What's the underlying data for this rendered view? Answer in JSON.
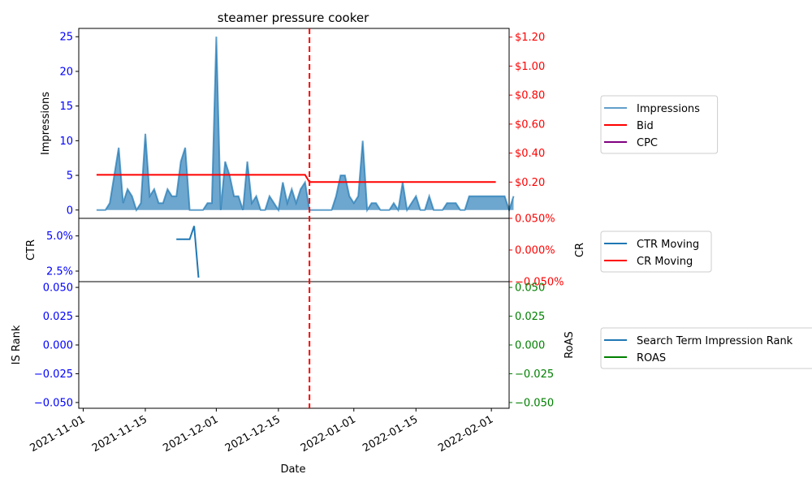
{
  "chart_data": [
    {
      "panel": "impressions",
      "type": "area",
      "title": "steamer pressure cooker",
      "xlabel": "Date",
      "ylabel": "Impressions",
      "ylabel_right": "",
      "x_start": "2021-11-04",
      "x_end": "2022-02-02",
      "xlim": [
        "2021-10-31",
        "2022-02-05"
      ],
      "ylim": [
        -1.2,
        26.2
      ],
      "yticks": [
        0,
        5,
        10,
        15,
        20,
        25
      ],
      "ylim_right": [
        -0.05,
        1.26
      ],
      "yticks_right": [
        0.2,
        0.4,
        0.6,
        0.8,
        1.0,
        1.2
      ],
      "yticks_right_labels": [
        "$0.20",
        "$0.40",
        "$0.60",
        "$0.80",
        "$1.00",
        "$1.20"
      ],
      "series": [
        {
          "name": "Impressions",
          "axis": "left",
          "values": [
            0,
            0,
            0,
            1,
            5,
            9,
            1,
            3,
            2,
            0,
            1,
            11,
            2,
            3,
            1,
            1,
            3,
            2,
            2,
            7,
            9,
            0,
            0,
            0,
            0,
            1,
            1,
            25,
            0,
            7,
            5,
            2,
            2,
            0,
            7,
            1,
            2,
            0,
            0,
            2,
            1,
            0,
            4,
            1,
            3,
            1,
            3,
            4,
            0,
            0,
            0,
            0,
            0,
            0,
            2,
            5,
            5,
            2,
            1,
            2,
            10,
            0,
            1,
            1,
            0,
            0,
            0,
            1,
            0,
            4,
            0,
            1,
            2,
            0,
            0,
            2,
            0,
            0,
            0,
            1,
            1,
            1,
            0,
            0,
            2,
            2,
            2,
            2,
            2,
            2,
            2,
            2,
            2,
            0,
            2
          ]
        },
        {
          "name": "Bid",
          "axis": "right",
          "points": [
            [
              "2021-11-04",
              0.25
            ],
            [
              "2021-12-21",
              0.25
            ],
            [
              "2021-12-22",
              0.2
            ],
            [
              "2022-02-02",
              0.2
            ]
          ]
        },
        {
          "name": "CPC",
          "axis": "right",
          "points": []
        }
      ],
      "vline": "2021-12-22",
      "legend": [
        "Impressions",
        "Bid",
        "CPC"
      ],
      "legend_position": "outside-right"
    },
    {
      "panel": "ctr",
      "type": "line",
      "ylabel": "CTR",
      "ylabel_right": "CR",
      "ylim": [
        0.0175,
        0.0625
      ],
      "yticks": [
        0.025,
        0.05
      ],
      "yticks_labels": [
        "2.5%",
        "5.0%"
      ],
      "ylim_right": [
        -0.05,
        0.05
      ],
      "yticks_right": [
        -0.05,
        0.0,
        0.05
      ],
      "yticks_right_labels": [
        "−0.050%",
        "0.000%",
        "0.050%"
      ],
      "series": [
        {
          "name": "CTR Moving",
          "axis": "left",
          "points": [
            [
              "2021-11-22",
              0.0476
            ],
            [
              "2021-11-23",
              0.0476
            ],
            [
              "2021-11-24",
              0.0476
            ],
            [
              "2021-11-25",
              0.0476
            ],
            [
              "2021-11-26",
              0.0571
            ],
            [
              "2021-11-27",
              0.0203
            ]
          ]
        },
        {
          "name": "CR Moving",
          "axis": "right",
          "points": []
        }
      ],
      "legend": [
        "CTR Moving",
        "CR Moving"
      ],
      "legend_position": "outside-right"
    },
    {
      "panel": "rank",
      "type": "line",
      "ylabel": "IS Rank",
      "ylabel_right": "RoAS",
      "ylim": [
        -0.055,
        0.055
      ],
      "yticks": [
        -0.05,
        -0.025,
        0.0,
        0.025,
        0.05
      ],
      "yticks_labels": [
        "−0.050",
        "−0.025",
        "0.000",
        "0.025",
        "0.050"
      ],
      "ylim_right": [
        -0.055,
        0.055
      ],
      "yticks_right": [
        -0.05,
        -0.025,
        0.0,
        0.025,
        0.05
      ],
      "yticks_right_labels": [
        "−0.050",
        "−0.025",
        "0.000",
        "0.025",
        "0.050"
      ],
      "xticks": [
        "2021-11-01",
        "2021-11-15",
        "2021-12-01",
        "2021-12-15",
        "2022-01-01",
        "2022-01-15",
        "2022-02-01"
      ],
      "series": [
        {
          "name": "Search Term Impression Rank",
          "axis": "left",
          "points": []
        },
        {
          "name": "ROAS",
          "axis": "right",
          "points": []
        }
      ],
      "legend": [
        "Search Term Impression Rank",
        "ROAS"
      ],
      "legend_position": "outside-right"
    }
  ],
  "colors": {
    "impressions": "#1f77b4",
    "bid": "#ff0000",
    "cpc": "#800080",
    "ctr": "#1f77b4",
    "cr": "#ff0000",
    "rank": "#1f77b4",
    "roas": "#008000",
    "left_ticks": "#0000ff",
    "right_ticks_top": "#ff0000",
    "right_ticks_bottom": "#008000",
    "vline": "#ff0000"
  }
}
